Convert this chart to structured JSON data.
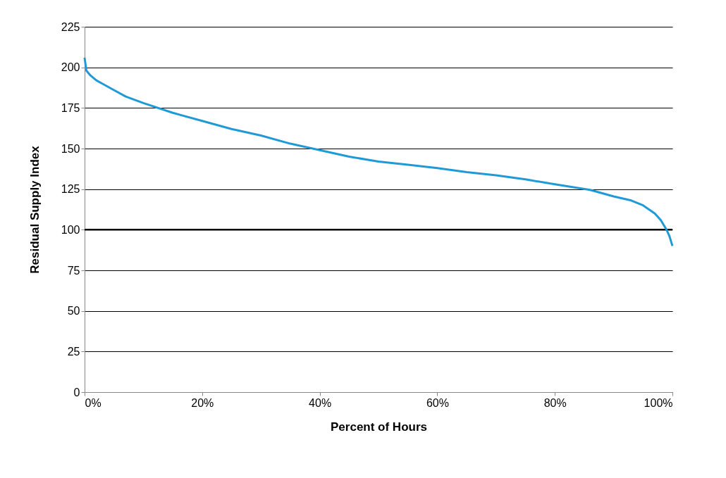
{
  "chart_data": {
    "type": "line",
    "xlabel": "Percent of Hours",
    "ylabel": "Residual Supply  Index",
    "x": [
      0,
      0.3,
      1,
      2,
      3,
      5,
      7,
      10,
      15,
      20,
      25,
      30,
      35,
      40,
      45,
      50,
      55,
      60,
      65,
      70,
      75,
      80,
      86,
      90,
      93,
      95,
      97,
      98,
      99,
      99.5,
      100
    ],
    "series": [
      {
        "color": "#1f9ad6",
        "values": [
          206,
          198,
          195,
          192,
          190,
          186,
          182,
          178,
          172,
          167,
          162,
          158,
          153,
          149,
          145,
          142,
          140,
          138,
          135.5,
          133.5,
          131,
          128,
          124.5,
          120.5,
          118,
          115,
          110,
          106,
          100,
          96,
          90
        ]
      }
    ],
    "xlim": [
      0,
      100
    ],
    "ylim": [
      0,
      225
    ],
    "xticks": [
      {
        "value": 0,
        "label": "0%"
      },
      {
        "value": 20,
        "label": "20%"
      },
      {
        "value": 40,
        "label": "40%"
      },
      {
        "value": 60,
        "label": "60%"
      },
      {
        "value": 80,
        "label": "80%"
      },
      {
        "value": 100,
        "label": "100%"
      }
    ],
    "yticks": [
      0,
      25,
      50,
      75,
      100,
      125,
      150,
      175,
      200,
      225
    ],
    "ref_lines": [
      {
        "axis": "y",
        "value": 100,
        "color": "#000000"
      }
    ],
    "grid": "y",
    "marker": "none",
    "line_style": "solid"
  }
}
